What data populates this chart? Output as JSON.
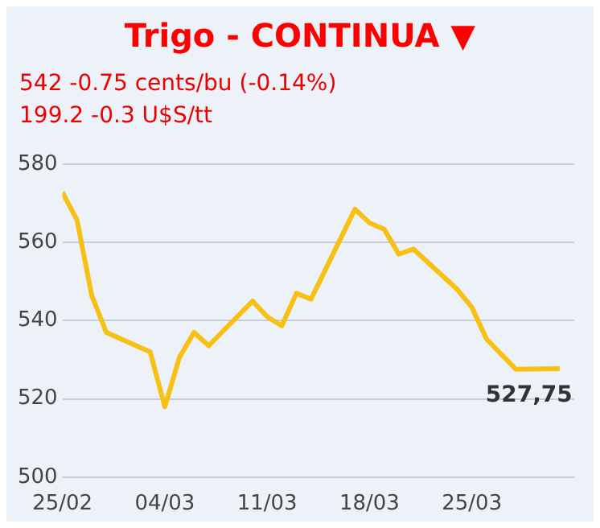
{
  "chart_data": {
    "type": "line",
    "title": "Trigo - CONTINUA ▼",
    "annotations": [
      "542 -0.75 cents/bu (-0.14%)",
      "199.2 -0.3 U$S/tt",
      {
        "text": "527,75",
        "x": "--03-31",
        "y": 527.75
      }
    ],
    "x": [
      "--02-25",
      "--02-26",
      "--02-27",
      "--02-28",
      "--03-03",
      "--03-04",
      "--03-05",
      "--03-06",
      "--03-07",
      "--03-10",
      "--03-11",
      "--03-12",
      "--03-13",
      "--03-14",
      "--03-17",
      "--03-18",
      "--03-19",
      "--03-20",
      "--03-21",
      "--03-24",
      "--03-25",
      "--03-26",
      "--03-28",
      "--03-31"
    ],
    "series": [
      {
        "color": "#f6c015",
        "values": [
          572.8,
          565.7,
          546.5,
          537,
          532,
          518,
          530.6,
          537,
          533.6,
          545,
          541,
          538.7,
          547,
          545.5,
          568.5,
          565,
          563.4,
          557,
          558.3,
          548,
          543.4,
          535.3,
          527.6,
          527.75
        ]
      }
    ],
    "xlim": [
      "--02-25",
      "--04-01"
    ],
    "xticks": [
      {
        "value": "--02-25",
        "label": "25/02"
      },
      {
        "value": "--03-04",
        "label": "04/03"
      },
      {
        "value": "--03-11",
        "label": "11/03"
      },
      {
        "value": "--03-18",
        "label": "18/03"
      },
      {
        "value": "--03-25",
        "label": "25/03"
      }
    ],
    "ylim": [
      500,
      580
    ],
    "yticks": [
      500,
      520,
      540,
      560,
      580
    ],
    "grid": "y",
    "marker": "none",
    "line_style": "solid",
    "legend": false
  }
}
